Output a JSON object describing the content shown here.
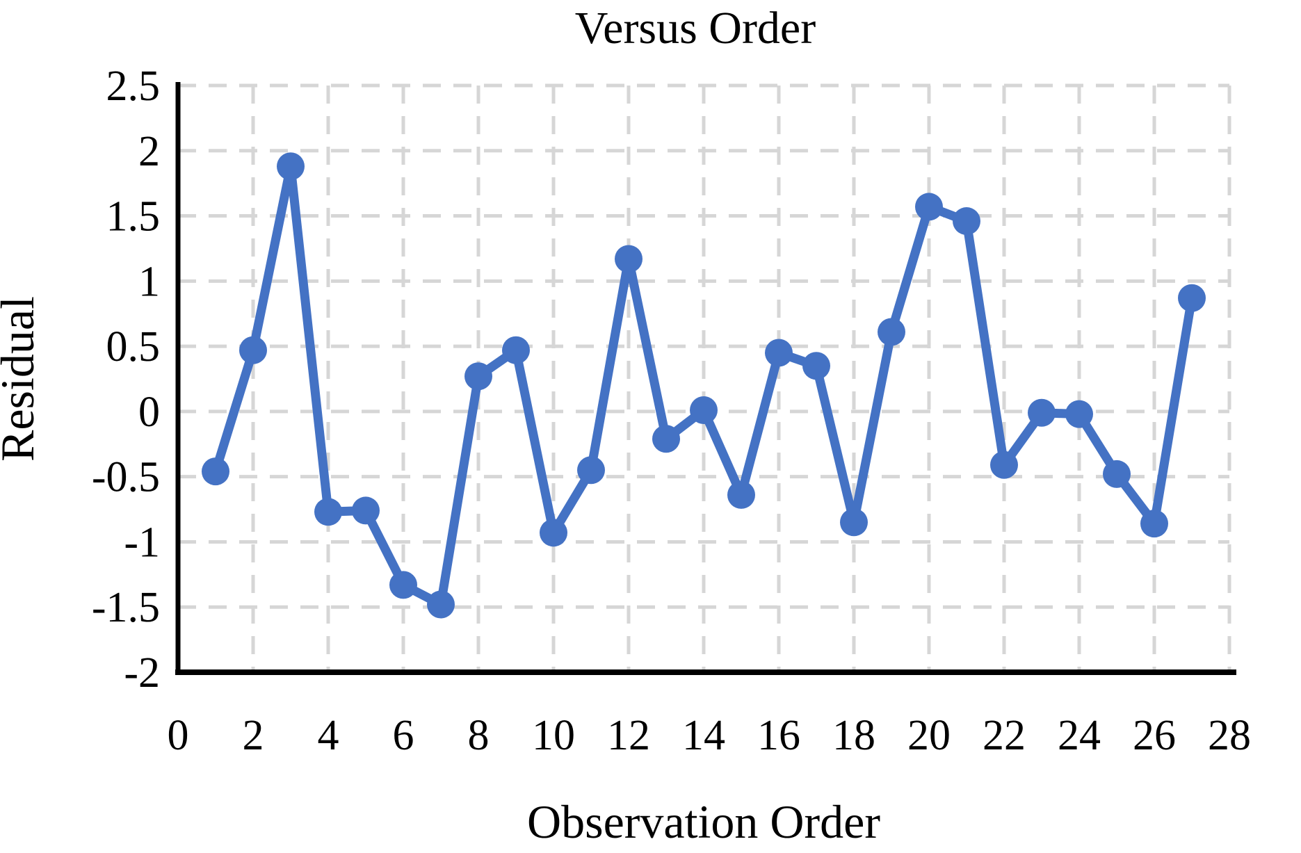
{
  "chart_data": {
    "type": "line",
    "title": "Versus Order",
    "xlabel": "Observation Order",
    "ylabel": "Residual",
    "series": [
      {
        "name": "Residual",
        "x": [
          1,
          2,
          3,
          4,
          5,
          6,
          7,
          8,
          9,
          10,
          11,
          12,
          13,
          14,
          15,
          16,
          17,
          18,
          19,
          20,
          21,
          22,
          23,
          24,
          25,
          26,
          27
        ],
        "y": [
          -0.46,
          0.47,
          1.88,
          -0.77,
          -0.76,
          -1.33,
          -1.48,
          0.27,
          0.47,
          -0.93,
          -0.45,
          1.17,
          -0.21,
          0.01,
          -0.64,
          0.45,
          0.35,
          -0.85,
          0.61,
          1.57,
          1.46,
          -0.41,
          -0.01,
          -0.02,
          -0.48,
          -0.86,
          0.87
        ]
      }
    ],
    "xlim": [
      0,
      28
    ],
    "ylim": [
      -2,
      2.5
    ],
    "x_ticks": [
      0,
      2,
      4,
      6,
      8,
      10,
      12,
      14,
      16,
      18,
      20,
      22,
      24,
      26,
      28
    ],
    "y_ticks": [
      2.5,
      2,
      1.5,
      1,
      0.5,
      0,
      -0.5,
      -1,
      -1.5,
      -2
    ],
    "grid": true,
    "legend": "none",
    "marker": "circle",
    "colors": {
      "line": "#4472C4",
      "marker": "#4472C4",
      "grid": "#D6D6D6",
      "axis": "#000000",
      "background": "#FFFFFF",
      "text": "#000000"
    }
  }
}
